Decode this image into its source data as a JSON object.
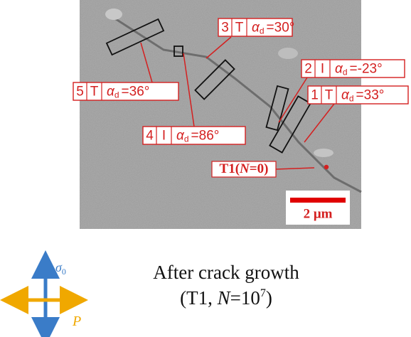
{
  "figure": {
    "labels": [
      {
        "number": "3",
        "mode": "T",
        "symbol": "α",
        "subscript": "d",
        "value": "=30°"
      },
      {
        "number": "2",
        "mode": "I",
        "symbol": "α",
        "subscript": "d",
        "value": "=-23°"
      },
      {
        "number": "1",
        "mode": "T",
        "symbol": "α",
        "subscript": "d",
        "value": "=33°"
      },
      {
        "number": "5",
        "mode": "T",
        "symbol": "α",
        "subscript": "d",
        "value": "=36°"
      },
      {
        "number": "4",
        "mode": "I",
        "symbol": "α",
        "subscript": "d",
        "value": "=86°"
      }
    ],
    "point_label": {
      "prefix": "T1(",
      "variable": "N",
      "suffix": "=0)"
    },
    "scale_bar": "2 μm",
    "axes": {
      "stress": "σ",
      "stress_subscript": "0",
      "load": "P"
    },
    "caption": {
      "line1": "After crack growth",
      "line2_prefix": "(T1, ",
      "line2_variable": "N",
      "line2_base": "=10",
      "line2_exponent": "7",
      "line2_suffix": ")"
    }
  }
}
